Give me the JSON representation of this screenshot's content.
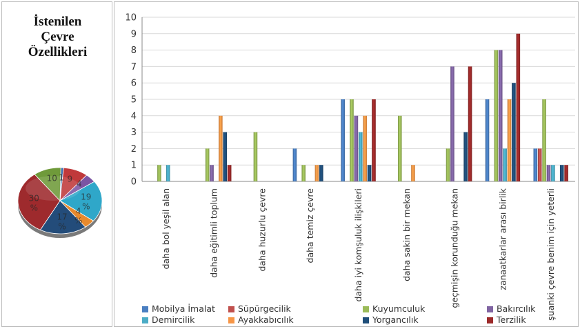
{
  "left_title": [
    "İstenilen",
    "Çevre",
    "Özellikleri"
  ],
  "pie": {
    "slices": [
      {
        "label": "1",
        "value": 1,
        "color": "#3a6fb0"
      },
      {
        "label": "9",
        "value": 9,
        "color": "#c0393b"
      },
      {
        "label": "4",
        "value": 4,
        "color": "#7b55a3"
      },
      {
        "label": "19 %",
        "value": 19,
        "color": "#2fa7c9"
      },
      {
        "label": "4 %",
        "value": 4,
        "color": "#e88a2d"
      },
      {
        "label": "17 %",
        "value": 17,
        "color": "#234c7a"
      },
      {
        "label": "30 %",
        "value": 30,
        "color": "#9e2a2d"
      },
      {
        "label": "10",
        "value": 10,
        "color": "#6f9a3a"
      }
    ]
  },
  "chart_data": {
    "type": "bar",
    "categories": [
      "daha bol yeşil alan",
      "daha eğitimli toplum",
      "daha huzurlu çevre",
      "daha temiz çevre",
      "daha iyi komşuluk ilişkileri",
      "daha sakin bir mekan",
      "geçmişin korunduğu mekan",
      "zanaatkarlar arası birlik",
      "şuanki çevre benim için yeterli"
    ],
    "ylim": [
      0,
      10
    ],
    "yticks": [
      "0",
      "1",
      "2",
      "3",
      "4",
      "5",
      "6",
      "7",
      "8",
      "9",
      "10"
    ],
    "grid": true,
    "legend_position": "bottom",
    "series": [
      {
        "name": "Mobilya İmalat",
        "color": "#4a7fc1",
        "values": [
          0,
          0,
          0,
          2,
          5,
          0,
          0,
          5,
          2
        ]
      },
      {
        "name": "Süpürgecilik",
        "color": "#c0504d",
        "values": [
          0,
          0,
          0,
          0,
          0,
          0,
          0,
          0,
          2
        ]
      },
      {
        "name": "Kuyumculuk",
        "color": "#9bbb59",
        "values": [
          1,
          2,
          3,
          1,
          5,
          4,
          2,
          8,
          5
        ]
      },
      {
        "name": "Bakırcılık",
        "color": "#8064a2",
        "values": [
          0,
          1,
          0,
          0,
          4,
          0,
          7,
          8,
          1
        ]
      },
      {
        "name": "Demircilik",
        "color": "#4bacc6",
        "values": [
          1,
          0,
          0,
          0,
          3,
          0,
          0,
          2,
          1
        ]
      },
      {
        "name": "Ayakkabıcılık",
        "color": "#f79646",
        "values": [
          0,
          4,
          0,
          1,
          4,
          1,
          0,
          5,
          0
        ]
      },
      {
        "name": "Yorgancılık",
        "color": "#1f4e79",
        "values": [
          0,
          3,
          0,
          1,
          1,
          0,
          3,
          6,
          1
        ]
      },
      {
        "name": "Terzilik",
        "color": "#9c2a2a",
        "values": [
          0,
          1,
          0,
          0,
          5,
          0,
          7,
          9,
          1
        ]
      }
    ]
  }
}
